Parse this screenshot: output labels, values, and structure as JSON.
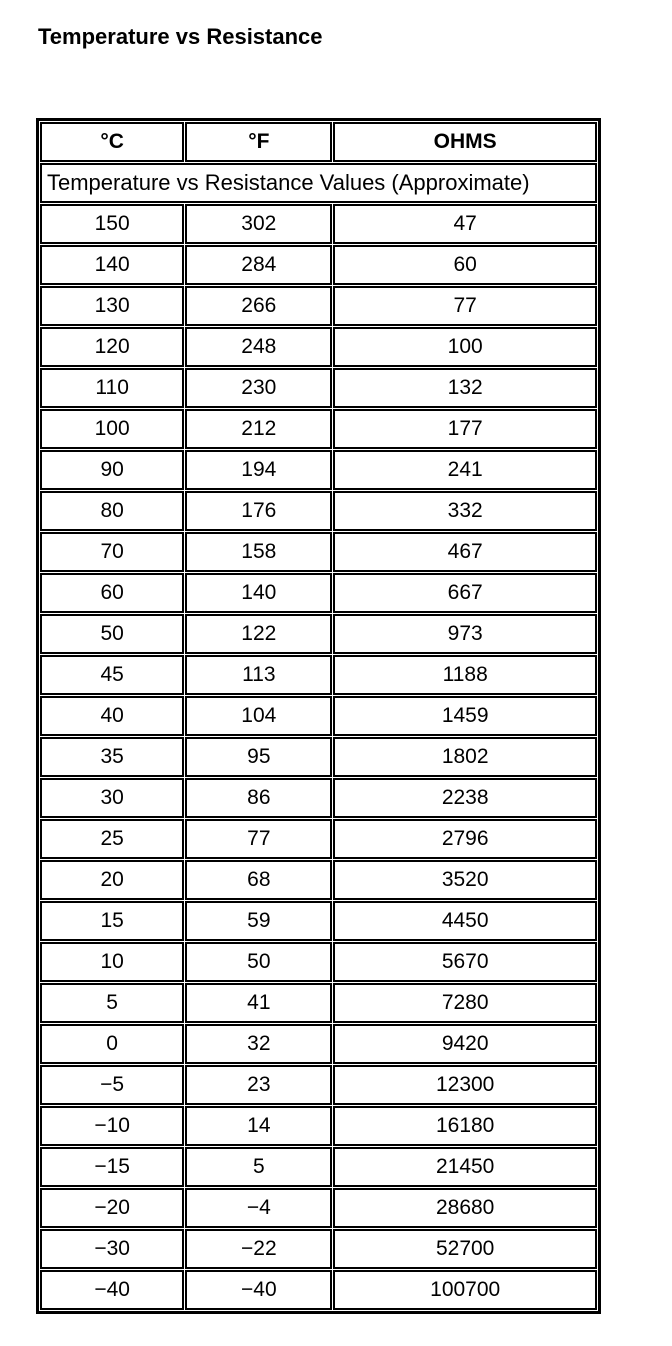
{
  "page": {
    "title": "Temperature vs Resistance"
  },
  "table": {
    "columns": [
      "°C",
      "°F",
      "OHMS"
    ],
    "subtitle": "Temperature vs Resistance Values (Approximate)",
    "rows": [
      [
        "150",
        "302",
        "47"
      ],
      [
        "140",
        "284",
        "60"
      ],
      [
        "130",
        "266",
        "77"
      ],
      [
        "120",
        "248",
        "100"
      ],
      [
        "110",
        "230",
        "132"
      ],
      [
        "100",
        "212",
        "177"
      ],
      [
        "90",
        "194",
        "241"
      ],
      [
        "80",
        "176",
        "332"
      ],
      [
        "70",
        "158",
        "467"
      ],
      [
        "60",
        "140",
        "667"
      ],
      [
        "50",
        "122",
        "973"
      ],
      [
        "45",
        "113",
        "1188"
      ],
      [
        "40",
        "104",
        "1459"
      ],
      [
        "35",
        "95",
        "1802"
      ],
      [
        "30",
        "86",
        "2238"
      ],
      [
        "25",
        "77",
        "2796"
      ],
      [
        "20",
        "68",
        "3520"
      ],
      [
        "15",
        "59",
        "4450"
      ],
      [
        "10",
        "50",
        "5670"
      ],
      [
        "5",
        "41",
        "7280"
      ],
      [
        "0",
        "32",
        "9420"
      ],
      [
        "−5",
        "23",
        "12300"
      ],
      [
        "−10",
        "14",
        "16180"
      ],
      [
        "−15",
        "5",
        "21450"
      ],
      [
        "−20",
        "−4",
        "28680"
      ],
      [
        "−30",
        "−22",
        "52700"
      ],
      [
        "−40",
        "−40",
        "100700"
      ]
    ]
  },
  "chart_data": {
    "type": "table",
    "title": "Temperature vs Resistance",
    "subtitle": "Temperature vs Resistance Values (Approximate)",
    "columns": [
      "°C",
      "°F",
      "OHMS"
    ],
    "celsius": [
      150,
      140,
      130,
      120,
      110,
      100,
      90,
      80,
      70,
      60,
      50,
      45,
      40,
      35,
      30,
      25,
      20,
      15,
      10,
      5,
      0,
      -5,
      -10,
      -15,
      -20,
      -30,
      -40
    ],
    "fahrenheit": [
      302,
      284,
      266,
      248,
      230,
      212,
      194,
      176,
      158,
      140,
      122,
      113,
      104,
      95,
      86,
      77,
      68,
      59,
      50,
      41,
      32,
      23,
      14,
      5,
      -4,
      -22,
      -40
    ],
    "ohms": [
      47,
      60,
      77,
      100,
      132,
      177,
      241,
      332,
      467,
      667,
      973,
      1188,
      1459,
      1802,
      2238,
      2796,
      3520,
      4450,
      5670,
      7280,
      9420,
      12300,
      16180,
      21450,
      28680,
      52700,
      100700
    ]
  }
}
